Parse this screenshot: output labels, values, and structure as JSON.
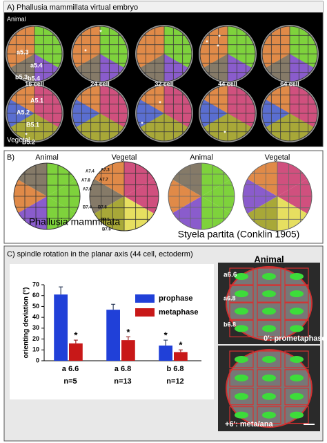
{
  "panel_a": {
    "title": "A) Phallusia mammillata virtual embryo",
    "animal": "Animal",
    "vegetal": "Vegetal",
    "stages": [
      "16 cell",
      "24 cell",
      "32 cell",
      "44 cell",
      "64 cell"
    ],
    "cell_labels": [
      "a5.3",
      "a5.4",
      "b5.3",
      "b5.4",
      "A5.1",
      "A5.2",
      "B5.1",
      "B5.2"
    ],
    "asterisk": "*"
  },
  "panel_b": {
    "label": "B)",
    "phallusia": {
      "animal": "Animal",
      "vegetal": "Vegetal",
      "name": "Phallusia mammillata"
    },
    "styela": {
      "animal": "Animal",
      "vegetal": "Vegetal",
      "name": "Styela partita (Conklin 1905)"
    },
    "cell_labels": [
      "A7.4",
      "A7.3",
      "A7.8",
      "A7.7",
      "A7.6",
      "B7.4",
      "B7.8",
      "B7.5",
      "B7.6"
    ]
  },
  "panel_c": {
    "title": "C) spindle rotation in the planar axis (44 cell, ectoderm)",
    "images": {
      "animal": "Animal",
      "cells": [
        "a6.6",
        "a6.8",
        "b6.8"
      ],
      "captions": [
        "0': prometaphase",
        "+6': meta/ana"
      ]
    }
  },
  "chart_data": {
    "type": "bar",
    "y_label": "orienting deviation (°)",
    "categories": [
      "a 6.6",
      "a 6.8",
      "b 6.8"
    ],
    "n_labels": [
      "n=5",
      "n=13",
      "n=12"
    ],
    "series": [
      {
        "name": "prophase",
        "color": "#2040d8",
        "values": [
          61,
          47,
          14
        ],
        "errors": [
          7,
          5,
          5
        ]
      },
      {
        "name": "metaphase",
        "color": "#c81818",
        "values": [
          16,
          19,
          8
        ],
        "errors": [
          3,
          3,
          2
        ]
      }
    ],
    "ylim": [
      0,
      70
    ],
    "yticks": [
      0,
      10,
      20,
      30,
      40,
      50,
      60,
      70
    ],
    "significance_marker": "*"
  }
}
